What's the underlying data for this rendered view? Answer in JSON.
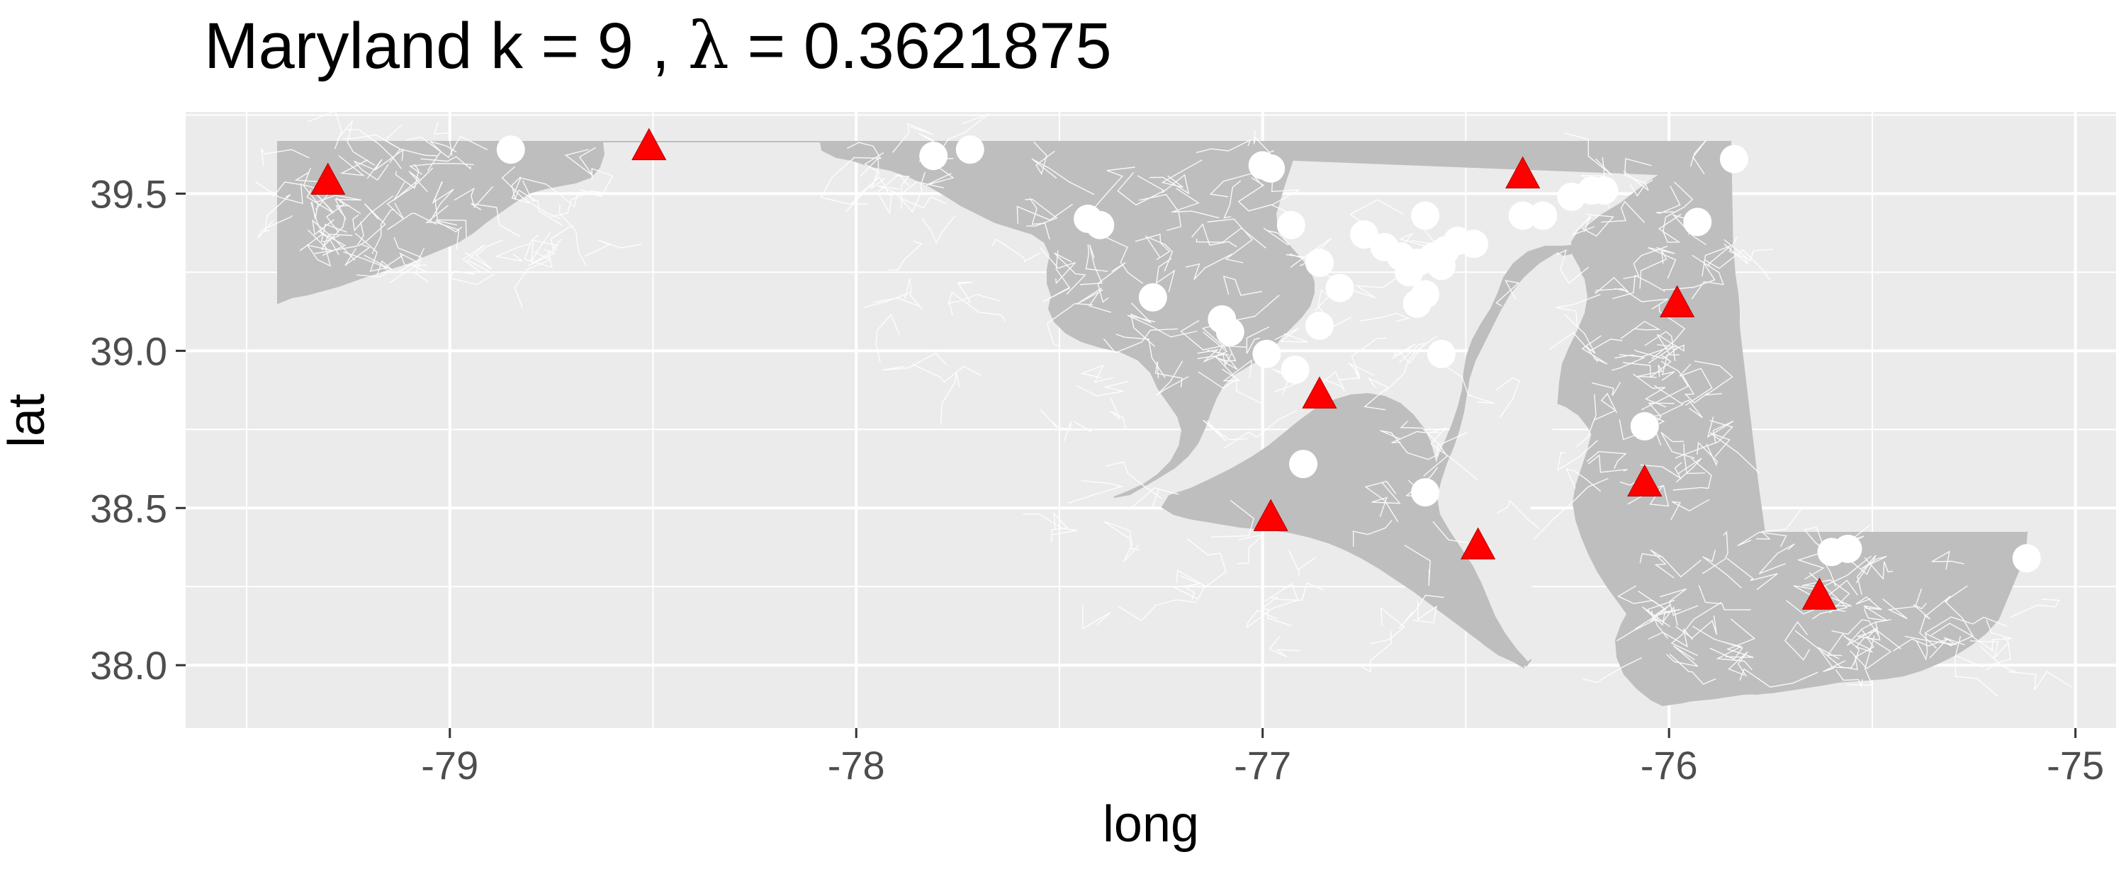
{
  "chart_data": {
    "type": "scatter",
    "title_parts": [
      "Maryland  k = ",
      "9",
      " , ",
      "λ",
      "  =  0.3621875"
    ],
    "xlabel": "long",
    "ylabel": "lat",
    "xlim": [
      -79.65,
      -74.9
    ],
    "ylim": [
      37.8,
      39.76
    ],
    "xticks": [
      -79,
      -78,
      -77,
      -76,
      -75
    ],
    "xtick_labels": [
      "-79",
      "-78",
      "-77",
      "-76",
      "-75"
    ],
    "yticks": [
      38.0,
      38.5,
      39.0,
      39.5
    ],
    "ytick_labels": [
      "38.0",
      "38.5",
      "39.0",
      "39.5"
    ],
    "grid": true,
    "legend": "none",
    "colors": {
      "panel_background": "#ebebeb",
      "grid": "#ffffff",
      "map_fill": "#bebebe",
      "map_border": "#ffffff",
      "facility": "#ff0000",
      "demand_point": "#ffffff"
    },
    "series": [
      {
        "shape": "triangle",
        "points": [
          {
            "x": -79.3,
            "y": 39.54
          },
          {
            "x": -78.51,
            "y": 39.65
          },
          {
            "x": -76.36,
            "y": 39.56
          },
          {
            "x": -75.98,
            "y": 39.15
          },
          {
            "x": -76.86,
            "y": 38.86
          },
          {
            "x": -76.06,
            "y": 38.58
          },
          {
            "x": -76.98,
            "y": 38.47
          },
          {
            "x": -76.47,
            "y": 38.38
          },
          {
            "x": -75.63,
            "y": 38.22
          }
        ]
      },
      {
        "shape": "circle",
        "points": [
          {
            "x": -78.85,
            "y": 39.64
          },
          {
            "x": -77.81,
            "y": 39.62
          },
          {
            "x": -77.72,
            "y": 39.64
          },
          {
            "x": -76.98,
            "y": 39.58
          },
          {
            "x": -77.0,
            "y": 39.59
          },
          {
            "x": -77.43,
            "y": 39.42
          },
          {
            "x": -77.4,
            "y": 39.4
          },
          {
            "x": -76.93,
            "y": 39.4
          },
          {
            "x": -76.75,
            "y": 39.37
          },
          {
            "x": -76.6,
            "y": 39.43
          },
          {
            "x": -76.7,
            "y": 39.33
          },
          {
            "x": -76.66,
            "y": 39.3
          },
          {
            "x": -76.62,
            "y": 39.28
          },
          {
            "x": -76.58,
            "y": 39.3
          },
          {
            "x": -76.55,
            "y": 39.32
          },
          {
            "x": -76.52,
            "y": 39.35
          },
          {
            "x": -76.48,
            "y": 39.34
          },
          {
            "x": -76.64,
            "y": 39.25
          },
          {
            "x": -76.56,
            "y": 39.27
          },
          {
            "x": -76.6,
            "y": 39.18
          },
          {
            "x": -76.62,
            "y": 39.15
          },
          {
            "x": -76.86,
            "y": 39.28
          },
          {
            "x": -76.81,
            "y": 39.2
          },
          {
            "x": -77.27,
            "y": 39.17
          },
          {
            "x": -77.1,
            "y": 39.1
          },
          {
            "x": -77.08,
            "y": 39.06
          },
          {
            "x": -76.86,
            "y": 39.08
          },
          {
            "x": -76.99,
            "y": 38.99
          },
          {
            "x": -76.92,
            "y": 38.94
          },
          {
            "x": -76.56,
            "y": 38.99
          },
          {
            "x": -76.36,
            "y": 39.43
          },
          {
            "x": -76.31,
            "y": 39.43
          },
          {
            "x": -76.24,
            "y": 39.49
          },
          {
            "x": -76.19,
            "y": 39.51
          },
          {
            "x": -76.16,
            "y": 39.51
          },
          {
            "x": -75.84,
            "y": 39.61
          },
          {
            "x": -75.93,
            "y": 39.41
          },
          {
            "x": -76.06,
            "y": 38.76
          },
          {
            "x": -76.9,
            "y": 38.64
          },
          {
            "x": -76.6,
            "y": 38.55
          },
          {
            "x": -75.6,
            "y": 38.36
          },
          {
            "x": -75.56,
            "y": 38.37
          },
          {
            "x": -75.12,
            "y": 38.34
          }
        ]
      }
    ]
  }
}
